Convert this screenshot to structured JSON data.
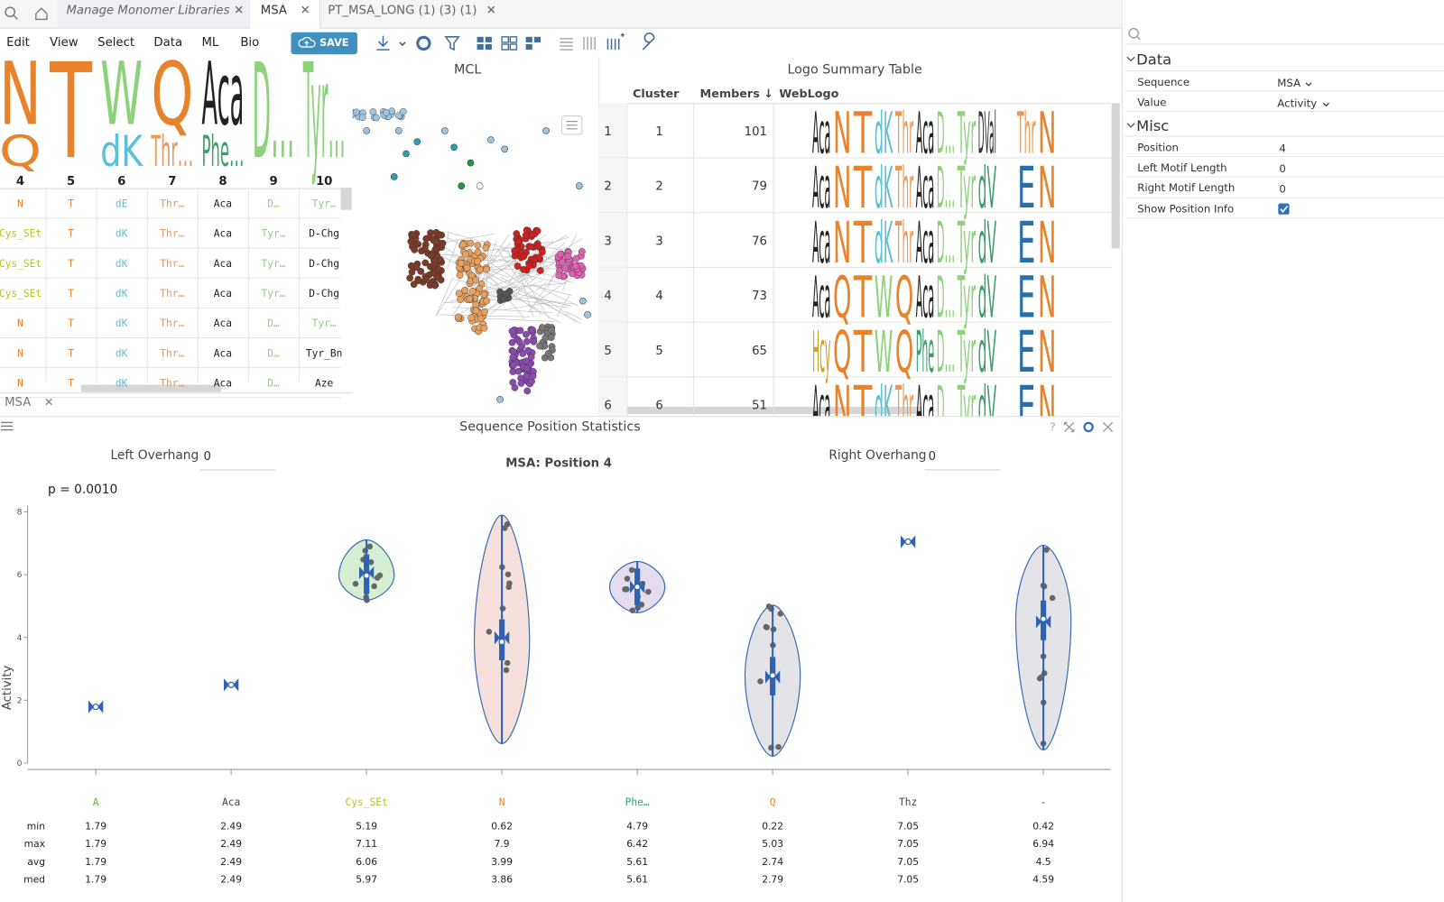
{
  "tabs": [
    "Manage Monomer Libraries",
    "MSA",
    "PT_MSA_LONG (1) (3) (1)"
  ],
  "menu": [
    "Edit",
    "View",
    "Select",
    "Data",
    "ML",
    "Bio"
  ],
  "save_button": "SAVE",
  "msa_view": {
    "positions": [
      "4",
      "5",
      "6",
      "7",
      "8",
      "9",
      "10"
    ],
    "logo": [
      [
        "N",
        "Q"
      ],
      [
        "T"
      ],
      [
        "W",
        "dK"
      ],
      [
        "Q",
        "Thr…"
      ],
      [
        "Aca",
        "Phe…"
      ],
      [
        "D…"
      ],
      [
        "Tyr…"
      ]
    ],
    "rows": [
      [
        "N",
        "T",
        "dE",
        "Thr…",
        "Aca",
        "D…",
        "Tyr…"
      ],
      [
        "Cys_SEt",
        "T",
        "dK",
        "Thr…",
        "Aca",
        "Tyr…",
        "D-Chg"
      ],
      [
        "Cys_SEt",
        "T",
        "dK",
        "Thr…",
        "Aca",
        "Tyr…",
        "D-Chg"
      ],
      [
        "Cys_SEt",
        "T",
        "dK",
        "Thr…",
        "Aca",
        "Tyr…",
        "D-Chg"
      ],
      [
        "N",
        "T",
        "dK",
        "Thr…",
        "Aca",
        "D…",
        "Tyr…"
      ],
      [
        "N",
        "T",
        "dK",
        "Thr…",
        "Aca",
        "D…",
        "Tyr_Bn"
      ],
      [
        "N",
        "T",
        "dK",
        "Thr…",
        "Aca",
        "D…",
        "Aze"
      ]
    ],
    "tab_label": "MSA"
  },
  "mcl_view": {
    "title": "MCL"
  },
  "logo_summary": {
    "title": "Logo Summary Table",
    "columns": [
      "Cluster",
      "Members ↓",
      "WebLogo"
    ],
    "rows": [
      {
        "index": "1",
        "cluster": 1,
        "members": 101,
        "logo": [
          "Aca",
          "N",
          "T",
          "dK",
          "Thr",
          "Aca",
          "D…",
          "Tyr",
          "DVal",
          "Thr",
          "N"
        ]
      },
      {
        "index": "2",
        "cluster": 2,
        "members": 79,
        "logo": [
          "Aca",
          "N",
          "T",
          "dK",
          "Thr",
          "Aca",
          "D…",
          "Tyr",
          "dV",
          "E",
          "N"
        ]
      },
      {
        "index": "3",
        "cluster": 3,
        "members": 76,
        "logo": [
          "Aca",
          "N",
          "T",
          "dK",
          "Thr",
          "Aca",
          "D…",
          "Tyr",
          "dV",
          "E",
          "N"
        ]
      },
      {
        "index": "4",
        "cluster": 4,
        "members": 73,
        "logo": [
          "Aca",
          "Q",
          "T",
          "W",
          "Q",
          "Aca",
          "D…",
          "Tyr",
          "dV",
          "E",
          "N"
        ]
      },
      {
        "index": "5",
        "cluster": 5,
        "members": 65,
        "logo": [
          "Hcy",
          "Q",
          "T",
          "W",
          "Q",
          "Phe",
          "D…",
          "Tyr",
          "dV",
          "E",
          "N"
        ]
      },
      {
        "index": "6",
        "cluster": 6,
        "members": 51,
        "logo": [
          "Aca",
          "N",
          "T",
          "dK",
          "Thr",
          "Aca",
          "D…",
          "Tyr",
          "dV",
          "E",
          "N"
        ]
      }
    ]
  },
  "stats_panel": {
    "title": "Sequence Position Statistics",
    "left_overhang_label": "Left Overhang",
    "left_overhang": "0",
    "right_overhang_label": "Right Overhang",
    "right_overhang": "0",
    "subtitle": "MSA: Position 4",
    "p_value": "p = 0.0010"
  },
  "chart_data": {
    "type": "violin",
    "y_label": "Activity",
    "ylim": [
      0,
      8.2
    ],
    "yticks": [
      0,
      2,
      4,
      6,
      8
    ],
    "categories": [
      "A",
      "Aca",
      "Cys_SEt",
      "N",
      "Phe…",
      "Q",
      "Thz",
      "-"
    ],
    "category_colors": [
      "#5cb83a",
      "#444444",
      "#b7c227",
      "#e8832c",
      "#3a9e6d",
      "#e8832c",
      "#444444",
      "#444444"
    ],
    "violin_colors": [
      "#dde6f2",
      "#dde6f2",
      "#d6efd2",
      "#f6e0dc",
      "#e6dcf0",
      "#e4e4e8",
      "#dde6f2",
      "#e4e4e8"
    ],
    "stat_rows": [
      {
        "label": "min",
        "values": [
          1.79,
          2.49,
          5.19,
          0.62,
          4.79,
          0.22,
          7.05,
          0.42
        ]
      },
      {
        "label": "max",
        "values": [
          1.79,
          2.49,
          7.11,
          7.9,
          6.42,
          5.03,
          7.05,
          6.94
        ]
      },
      {
        "label": "avg",
        "values": [
          1.79,
          2.49,
          6.06,
          3.99,
          5.61,
          2.74,
          7.05,
          4.5
        ]
      },
      {
        "label": "med",
        "values": [
          1.79,
          2.49,
          5.97,
          3.86,
          5.61,
          2.79,
          7.05,
          4.59
        ]
      }
    ]
  },
  "properties": {
    "data_section": "Data",
    "sequence_label": "Sequence",
    "sequence": "MSA",
    "value_label": "Value",
    "value": "Activity",
    "misc_section": "Misc",
    "position_label": "Position",
    "position": "4",
    "left_motif_label": "Left Motif Length",
    "left_motif": "0",
    "right_motif_label": "Right Motif Length",
    "right_motif": "0",
    "show_info_label": "Show Position Info"
  }
}
